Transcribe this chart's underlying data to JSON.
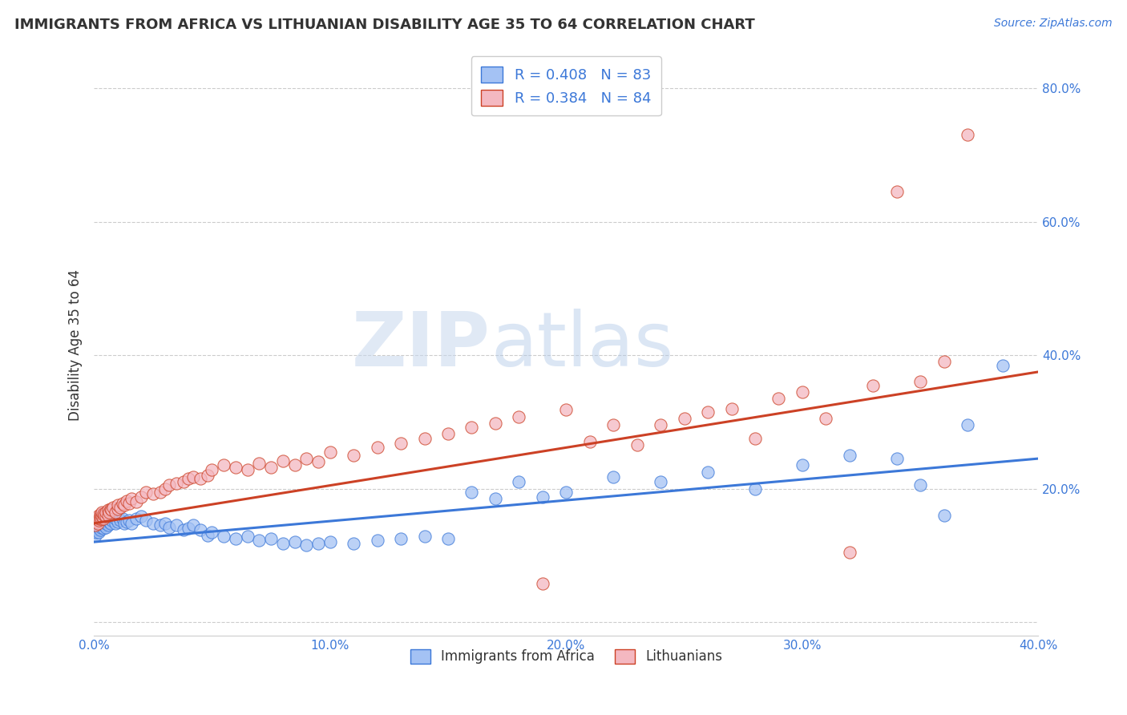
{
  "title": "IMMIGRANTS FROM AFRICA VS LITHUANIAN DISABILITY AGE 35 TO 64 CORRELATION CHART",
  "source": "Source: ZipAtlas.com",
  "ylabel": "Disability Age 35 to 64",
  "xlim": [
    0.0,
    0.4
  ],
  "ylim": [
    -0.02,
    0.85
  ],
  "color_blue": "#a4c2f4",
  "color_pink": "#f4b8c1",
  "line_color_blue": "#3c78d8",
  "line_color_pink": "#cc4125",
  "background_color": "#ffffff",
  "watermark_zip": "ZIP",
  "watermark_atlas": "atlas",
  "legend1_label": "R = 0.408   N = 83",
  "legend2_label": "R = 0.384   N = 84",
  "legend_bottom_label1": "Immigrants from Africa",
  "legend_bottom_label2": "Lithuanians",
  "blue_x": [
    0.0005,
    0.001,
    0.0012,
    0.0015,
    0.0017,
    0.002,
    0.002,
    0.0022,
    0.0025,
    0.0025,
    0.003,
    0.003,
    0.0032,
    0.0035,
    0.004,
    0.004,
    0.0042,
    0.0045,
    0.005,
    0.005,
    0.0052,
    0.006,
    0.006,
    0.0065,
    0.007,
    0.007,
    0.0075,
    0.008,
    0.009,
    0.009,
    0.01,
    0.01,
    0.011,
    0.012,
    0.013,
    0.014,
    0.015,
    0.016,
    0.018,
    0.02,
    0.022,
    0.025,
    0.028,
    0.03,
    0.032,
    0.035,
    0.038,
    0.04,
    0.042,
    0.045,
    0.048,
    0.05,
    0.055,
    0.06,
    0.065,
    0.07,
    0.075,
    0.08,
    0.085,
    0.09,
    0.095,
    0.1,
    0.11,
    0.12,
    0.13,
    0.14,
    0.15,
    0.16,
    0.17,
    0.18,
    0.19,
    0.2,
    0.22,
    0.24,
    0.26,
    0.28,
    0.3,
    0.32,
    0.34,
    0.35,
    0.36,
    0.37,
    0.385
  ],
  "blue_y": [
    0.13,
    0.135,
    0.14,
    0.138,
    0.142,
    0.135,
    0.145,
    0.14,
    0.138,
    0.148,
    0.142,
    0.148,
    0.145,
    0.15,
    0.14,
    0.148,
    0.145,
    0.15,
    0.142,
    0.148,
    0.15,
    0.145,
    0.155,
    0.15,
    0.148,
    0.155,
    0.152,
    0.158,
    0.148,
    0.155,
    0.15,
    0.158,
    0.152,
    0.155,
    0.148,
    0.15,
    0.152,
    0.148,
    0.155,
    0.158,
    0.152,
    0.148,
    0.145,
    0.148,
    0.142,
    0.145,
    0.138,
    0.14,
    0.145,
    0.138,
    0.13,
    0.135,
    0.128,
    0.125,
    0.128,
    0.122,
    0.125,
    0.118,
    0.12,
    0.115,
    0.118,
    0.12,
    0.118,
    0.122,
    0.125,
    0.128,
    0.125,
    0.195,
    0.185,
    0.21,
    0.188,
    0.195,
    0.218,
    0.21,
    0.225,
    0.2,
    0.235,
    0.25,
    0.245,
    0.205,
    0.16,
    0.295,
    0.385
  ],
  "pink_x": [
    0.0005,
    0.001,
    0.0012,
    0.0015,
    0.0017,
    0.002,
    0.002,
    0.0022,
    0.0025,
    0.003,
    0.003,
    0.0032,
    0.0035,
    0.004,
    0.004,
    0.0042,
    0.005,
    0.005,
    0.006,
    0.006,
    0.0065,
    0.007,
    0.0075,
    0.008,
    0.009,
    0.01,
    0.01,
    0.011,
    0.012,
    0.013,
    0.014,
    0.015,
    0.016,
    0.018,
    0.02,
    0.022,
    0.025,
    0.028,
    0.03,
    0.032,
    0.035,
    0.038,
    0.04,
    0.042,
    0.045,
    0.048,
    0.05,
    0.055,
    0.06,
    0.065,
    0.07,
    0.075,
    0.08,
    0.085,
    0.09,
    0.095,
    0.1,
    0.11,
    0.12,
    0.13,
    0.14,
    0.15,
    0.16,
    0.17,
    0.18,
    0.19,
    0.2,
    0.21,
    0.22,
    0.23,
    0.24,
    0.25,
    0.26,
    0.27,
    0.28,
    0.29,
    0.3,
    0.31,
    0.32,
    0.33,
    0.34,
    0.35,
    0.36,
    0.37
  ],
  "pink_y": [
    0.145,
    0.15,
    0.155,
    0.148,
    0.155,
    0.152,
    0.16,
    0.155,
    0.158,
    0.155,
    0.162,
    0.158,
    0.165,
    0.155,
    0.162,
    0.16,
    0.158,
    0.165,
    0.16,
    0.168,
    0.165,
    0.17,
    0.168,
    0.172,
    0.165,
    0.17,
    0.175,
    0.172,
    0.178,
    0.175,
    0.182,
    0.178,
    0.185,
    0.18,
    0.188,
    0.195,
    0.192,
    0.195,
    0.2,
    0.205,
    0.208,
    0.21,
    0.215,
    0.218,
    0.215,
    0.22,
    0.228,
    0.235,
    0.232,
    0.228,
    0.238,
    0.232,
    0.242,
    0.235,
    0.245,
    0.24,
    0.255,
    0.25,
    0.262,
    0.268,
    0.275,
    0.282,
    0.292,
    0.298,
    0.308,
    0.058,
    0.318,
    0.27,
    0.295,
    0.265,
    0.295,
    0.305,
    0.315,
    0.32,
    0.275,
    0.335,
    0.345,
    0.305,
    0.105,
    0.355,
    0.645,
    0.36,
    0.39,
    0.73
  ],
  "blue_line_y_start": 0.12,
  "blue_line_y_end": 0.245,
  "pink_line_y_start": 0.148,
  "pink_line_y_end": 0.375
}
